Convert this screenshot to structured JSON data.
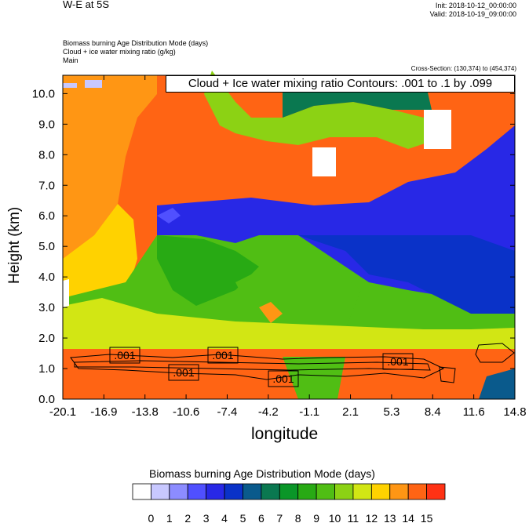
{
  "header": {
    "title": "W-E at 5S",
    "init": "Init: 2018-10-12_00:00:00",
    "valid": "Valid: 2018-10-19_09:00:00",
    "field1": "Biomass burning Age Distribution Mode   (days)",
    "field2": "Cloud + ice water mixing ratio   (g/kg)",
    "field3": "Main",
    "cross_section": "Cross-Section: (130,374) to (454,374)",
    "contour_label": "Cloud + Ice water mixing ratio Contours: .001 to .1 by .099"
  },
  "chart_data": {
    "type": "heatmap",
    "xlabel": "longitude",
    "ylabel": "Height (km)",
    "x_ticks": [
      "-20.1",
      "-16.9",
      "-13.8",
      "-10.6",
      "-7.4",
      "-4.2",
      "-1.1",
      "2.1",
      "5.3",
      "8.4",
      "11.6",
      "14.8"
    ],
    "y_ticks": [
      "0.0",
      "1.0",
      "2.0",
      "3.0",
      "4.0",
      "5.0",
      "6.0",
      "7.0",
      "8.0",
      "9.0",
      "10.0"
    ],
    "xlim": [
      -20.1,
      14.8
    ],
    "ylim": [
      0,
      10.6
    ],
    "colorbar": {
      "title": "Biomass burning Age Distribution Mode  (days)",
      "labels": [
        "0",
        "1",
        "2",
        "3",
        "4",
        "5",
        "6",
        "7",
        "8",
        "9",
        "10",
        "11",
        "12",
        "13",
        "14",
        "15"
      ],
      "colors": [
        "#ffffff",
        "#c8c8ff",
        "#8c8cff",
        "#5050ff",
        "#2828e6",
        "#0a32c8",
        "#0a5a8c",
        "#0a7850",
        "#0a9628",
        "#28aa14",
        "#50be14",
        "#8cd214",
        "#d2e614",
        "#ffd200",
        "#ff9614",
        "#ff6414",
        "#ff3214"
      ]
    },
    "contour_labels": [
      ".001",
      ".001",
      ".001",
      ".001",
      ".001"
    ]
  }
}
